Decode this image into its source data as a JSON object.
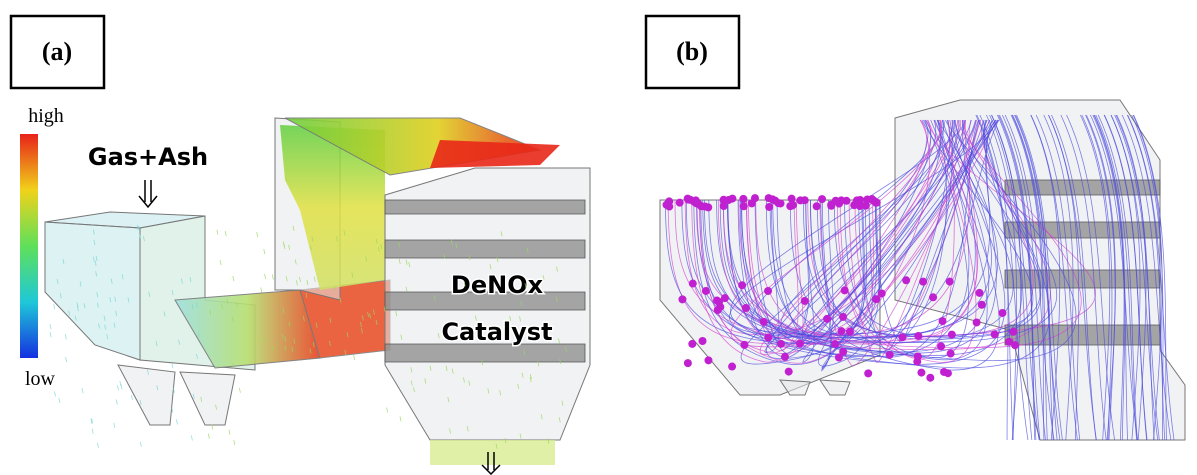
{
  "panel_a": {
    "label": "(a)",
    "colorbar": {
      "high": "high",
      "low": "low"
    },
    "inlet": "Gas+Ash",
    "catalyst": {
      "line1": "DeNOx",
      "line2": "Catalyst"
    }
  },
  "panel_b": {
    "label": "(b)"
  }
}
